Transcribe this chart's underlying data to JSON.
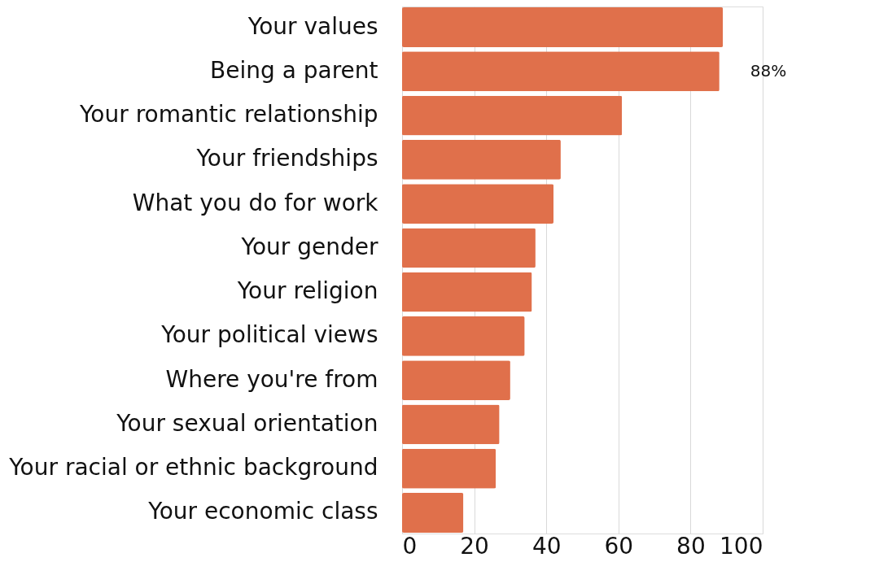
{
  "chart_data": {
    "type": "bar",
    "orientation": "horizontal",
    "categories": [
      "Your values",
      "Being a parent",
      "Your romantic relationship",
      "Your friendships",
      "What you do for work",
      "Your gender",
      "Your religion",
      "Your political views",
      "Where you're from",
      "Your sexual orientation",
      "Your racial or ethnic background",
      "Your economic class"
    ],
    "values": [
      89,
      88,
      61,
      44,
      42,
      37,
      36,
      34,
      30,
      27,
      26,
      17
    ],
    "color": "#e0704b",
    "value_labels": [
      null,
      "88%",
      null,
      null,
      null,
      null,
      null,
      null,
      null,
      null,
      null,
      null
    ],
    "xlim": [
      0,
      100
    ],
    "xticks": [
      0,
      20,
      40,
      60,
      80,
      100
    ],
    "grid": "x"
  }
}
